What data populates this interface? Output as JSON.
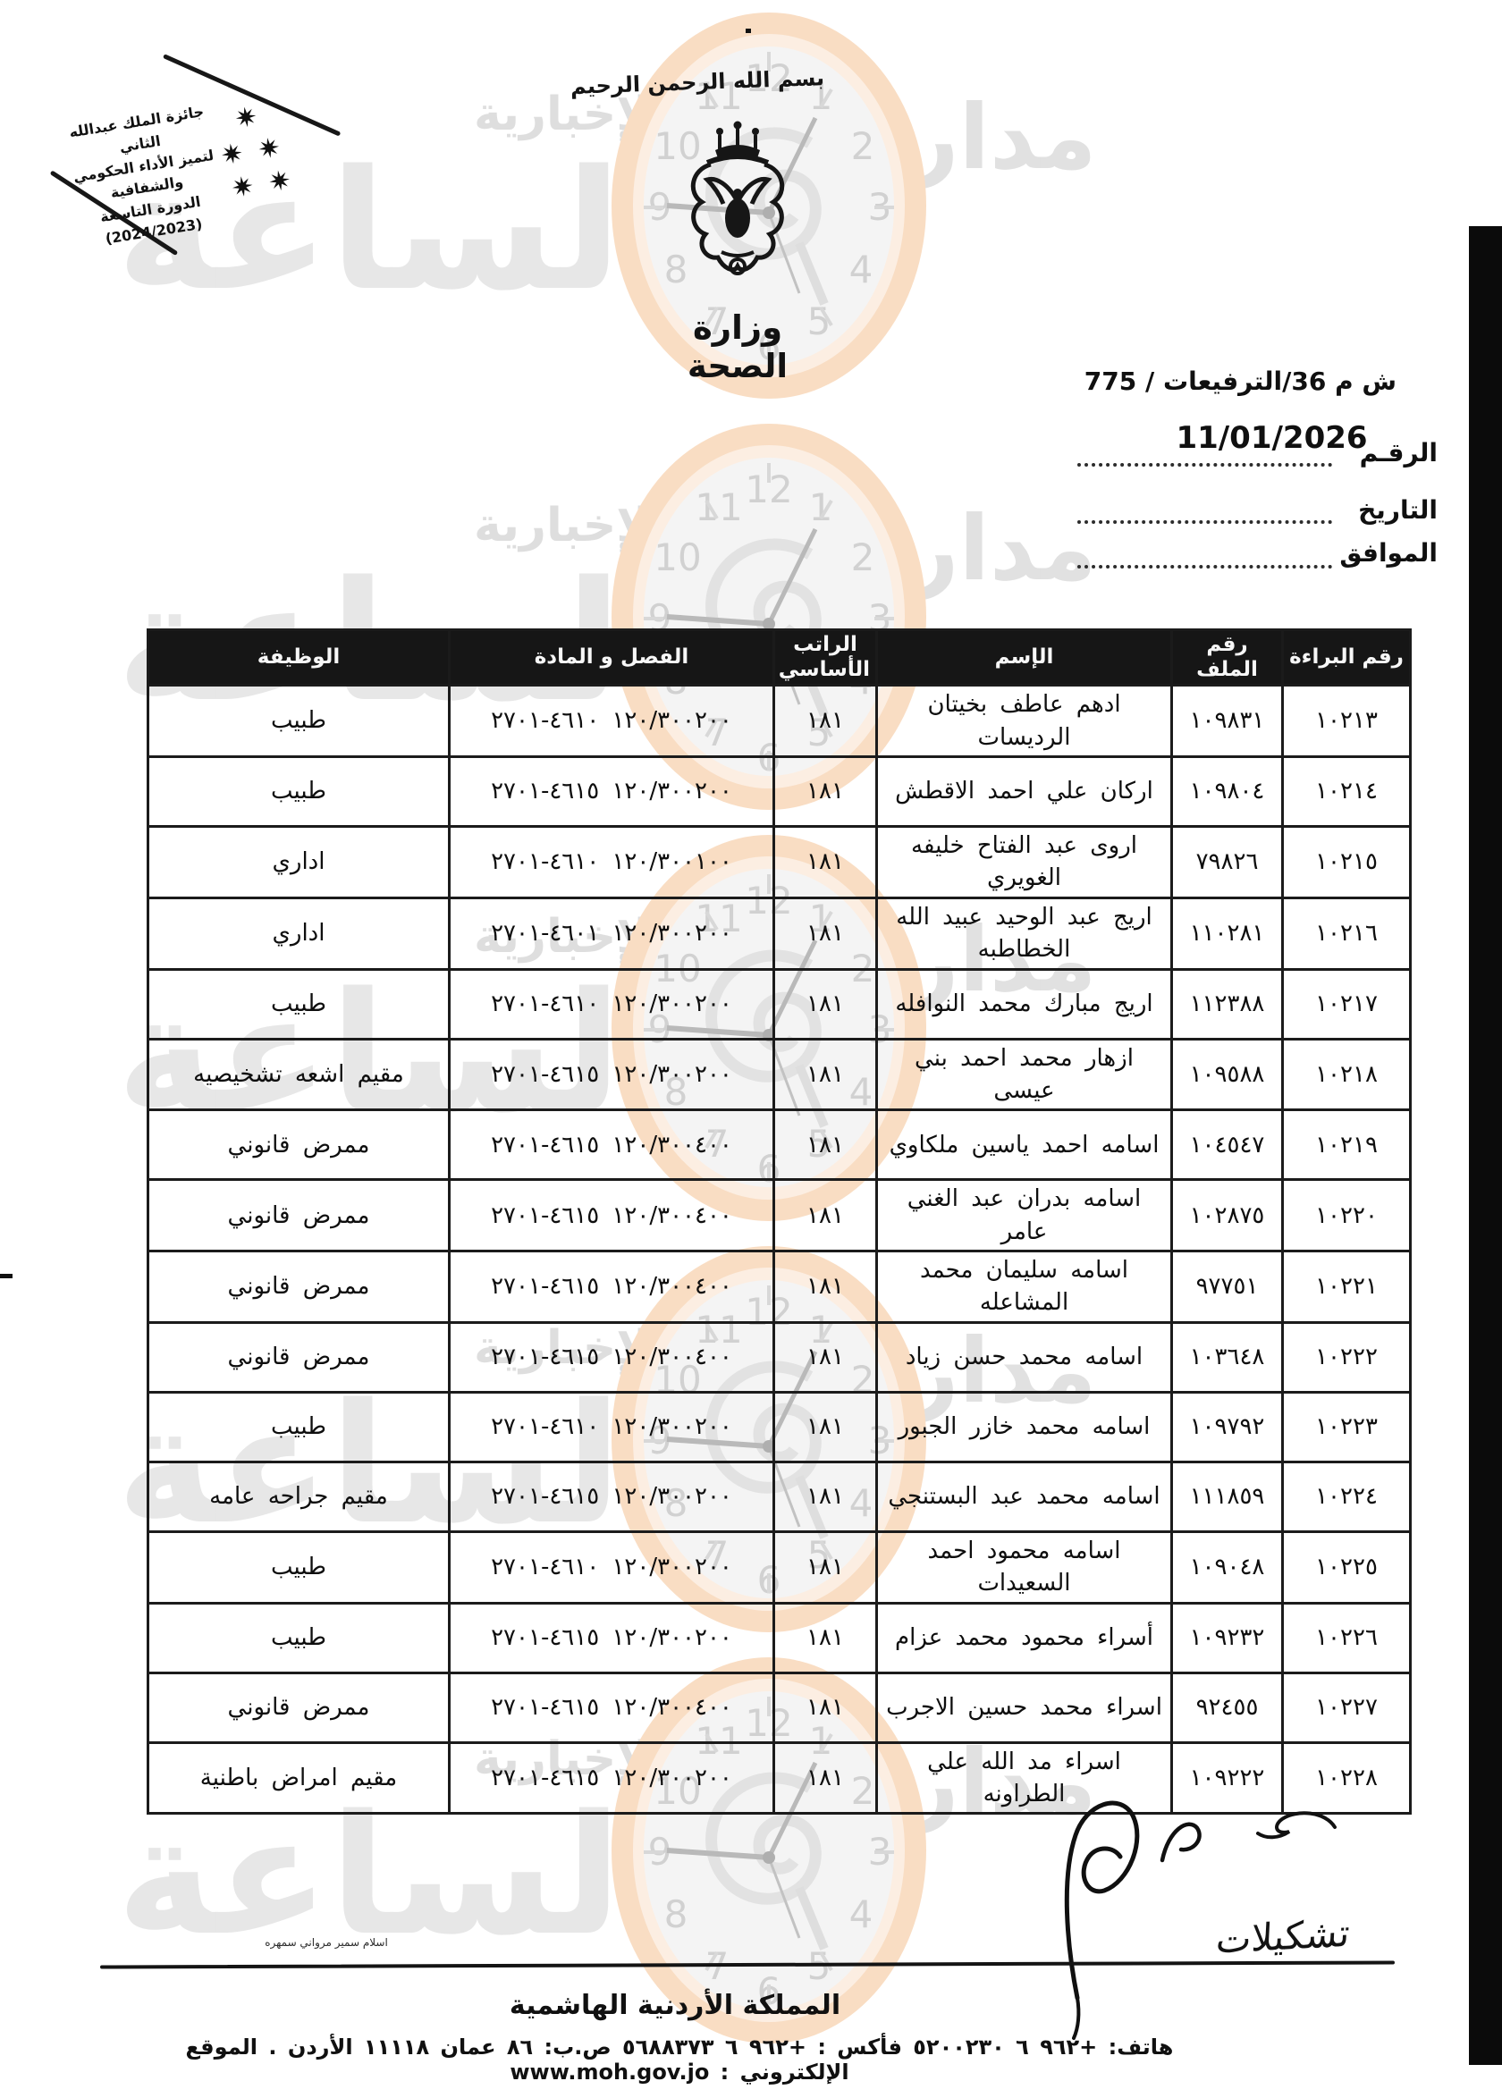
{
  "stamp": {
    "line1": "جائزة الملك عبدالله الثاني",
    "line2": "لتميز الأداء الحكومي والشفافية",
    "line3": "الدورة التاسعة",
    "line4": "(2024/2023)",
    "star_glyph": "✷"
  },
  "header": {
    "basmala": "بسم الله الرحمن الرحيم",
    "ministry_name": "وزارة الصحة",
    "reference": "ش م 36/الترفيعات / 775",
    "date_value": "11/01/2026",
    "number_label": "الرقـم",
    "date_label": "التاريخ",
    "corresponding_label": "الموافق"
  },
  "table": {
    "headers": {
      "decree_no": "رقم البراءة",
      "file_no": "رقم الملف",
      "name": "الإسم",
      "basic_salary": "الراتب الأساسي",
      "chapter_article": "الفصل و المادة",
      "job": "الوظيفة"
    },
    "rows": [
      {
        "decree_no": "١٠٢١٣",
        "file_no": "١٠٩٨٣١",
        "name": "ادهم عاطف بخيتان الرديسات",
        "basic_salary": "١٨١",
        "chapter_article": "١٢٠/٣٠٠٢٠٠  ٤٦١٠-٢٧٠١",
        "job": "طبيب"
      },
      {
        "decree_no": "١٠٢١٤",
        "file_no": "١٠٩٨٠٤",
        "name": "اركان علي احمد الاقطش",
        "basic_salary": "١٨١",
        "chapter_article": "١٢٠/٣٠٠٢٠٠  ٤٦١٥-٢٧٠١",
        "job": "طبيب"
      },
      {
        "decree_no": "١٠٢١٥",
        "file_no": "٧٩٨٢٦",
        "name": "اروى عبد الفتاح خليفه الغويري",
        "basic_salary": "١٨١",
        "chapter_article": "١٢٠/٣٠٠١٠٠  ٤٦١٠-٢٧٠١",
        "job": "اداري"
      },
      {
        "decree_no": "١٠٢١٦",
        "file_no": "١١٠٢٨١",
        "name": "اريج عبد الوحيد عبيد الله الخطاطبه",
        "basic_salary": "١٨١",
        "chapter_article": "١٢٠/٣٠٠٢٠٠  ٤٦٠١-٢٧٠١",
        "job": "اداري"
      },
      {
        "decree_no": "١٠٢١٧",
        "file_no": "١١٢٣٨٨",
        "name": "اريج مبارك محمد النوافله",
        "basic_salary": "١٨١",
        "chapter_article": "١٢٠/٣٠٠٢٠٠  ٤٦١٠-٢٧٠١",
        "job": "طبيب"
      },
      {
        "decree_no": "١٠٢١٨",
        "file_no": "١٠٩٥٨٨",
        "name": "ازهار محمد احمد بني عيسى",
        "basic_salary": "١٨١",
        "chapter_article": "١٢٠/٣٠٠٢٠٠  ٤٦١٥-٢٧٠١",
        "job": "مقيم اشعه تشخيصيه"
      },
      {
        "decree_no": "١٠٢١٩",
        "file_no": "١٠٤٥٤٧",
        "name": "اسامه احمد ياسين ملكاوي",
        "basic_salary": "١٨١",
        "chapter_article": "١٢٠/٣٠٠٤٠٠  ٤٦١٥-٢٧٠١",
        "job": "ممرض قانوني"
      },
      {
        "decree_no": "١٠٢٢٠",
        "file_no": "١٠٢٨٧٥",
        "name": "اسامه بدران عبد الغني عامر",
        "basic_salary": "١٨١",
        "chapter_article": "١٢٠/٣٠٠٤٠٠  ٤٦١٥-٢٧٠١",
        "job": "ممرض قانوني"
      },
      {
        "decree_no": "١٠٢٢١",
        "file_no": "٩٧٧٥١",
        "name": "اسامه سليمان محمد المشاعله",
        "basic_salary": "١٨١",
        "chapter_article": "١٢٠/٣٠٠٤٠٠  ٤٦١٥-٢٧٠١",
        "job": "ممرض قانوني"
      },
      {
        "decree_no": "١٠٢٢٢",
        "file_no": "١٠٣٦٤٨",
        "name": "اسامه محمد حسن زياد",
        "basic_salary": "١٨١",
        "chapter_article": "١٢٠/٣٠٠٤٠٠  ٤٦١٥-٢٧٠١",
        "job": "ممرض قانوني"
      },
      {
        "decree_no": "١٠٢٢٣",
        "file_no": "١٠٩٧٩٢",
        "name": "اسامه محمد خازر الجبور",
        "basic_salary": "١٨١",
        "chapter_article": "١٢٠/٣٠٠٢٠٠  ٤٦١٠-٢٧٠١",
        "job": "طبيب"
      },
      {
        "decree_no": "١٠٢٢٤",
        "file_no": "١١١٨٥٩",
        "name": "اسامه محمد عبد البستنجي",
        "basic_salary": "١٨١",
        "chapter_article": "١٢٠/٣٠٠٢٠٠  ٤٦١٥-٢٧٠١",
        "job": "مقيم جراحه عامه"
      },
      {
        "decree_no": "١٠٢٢٥",
        "file_no": "١٠٩٠٤٨",
        "name": "اسامه محمود احمد السعيدات",
        "basic_salary": "١٨١",
        "chapter_article": "١٢٠/٣٠٠٢٠٠  ٤٦١٠-٢٧٠١",
        "job": "طبيب"
      },
      {
        "decree_no": "١٠٢٢٦",
        "file_no": "١٠٩٢٣٢",
        "name": "أسراء محمود محمد عزام",
        "basic_salary": "١٨١",
        "chapter_article": "١٢٠/٣٠٠٢٠٠  ٤٦١٥-٢٧٠١",
        "job": "طبيب"
      },
      {
        "decree_no": "١٠٢٢٧",
        "file_no": "٩٢٤٥٥",
        "name": "اسراء محمد حسين الاجرب",
        "basic_salary": "١٨١",
        "chapter_article": "١٢٠/٣٠٠٤٠٠  ٤٦١٥-٢٧٠١",
        "job": "ممرض قانوني"
      },
      {
        "decree_no": "١٠٢٢٨",
        "file_no": "١٠٩٢٢٢",
        "name": "اسراء مد الله علي الطراونه",
        "basic_salary": "١٨١",
        "chapter_article": "١٢٠/٣٠٠٢٠٠  ٤٦١٥-٢٧٠١",
        "job": "مقيم امراض باطنية"
      }
    ]
  },
  "annotations": {
    "handwritten_word": "تشكيلات",
    "prepared_note": "اسلام سمير مرواني سمهره"
  },
  "footer": {
    "kingdom": "المملكة الأردنية الهاشمية",
    "contact": "هاتف: +٩٦٢ ٦ ٥٢٠٠٢٣٠ فأكس : +٩٦٢ ٦ ٥٦٨٨٣٧٣ ص.ب: ٨٦ عمان ١١١١٨ الأردن . الموقع الإلكتروني : www.moh.gov.jo"
  },
  "watermark": {
    "word_madar": "مدار",
    "word_alsaa": "الساعة",
    "word_news": "الإخبارية"
  }
}
